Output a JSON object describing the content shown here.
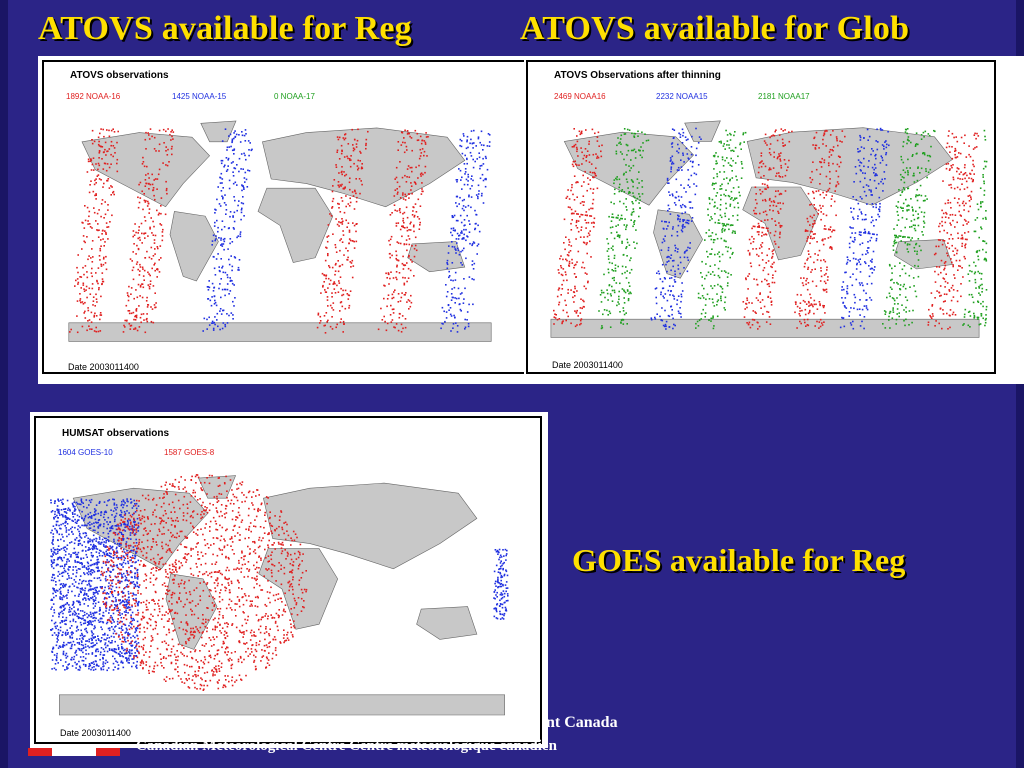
{
  "titles": {
    "atovs_reg": "ATOVS available for Reg",
    "atovs_glob": "ATOVS available for Glob",
    "goes_reg": "GOES available for Reg"
  },
  "panels": {
    "reg": {
      "title": "ATOVS observations",
      "legend": [
        {
          "label": "1892 NOAA-16",
          "color": "#e02020"
        },
        {
          "label": "1425 NOAA-15",
          "color": "#2030e0"
        },
        {
          "label": "0 NOAA-17",
          "color": "#20a020"
        }
      ],
      "date": "Date 2003011400"
    },
    "glob": {
      "title": "ATOVS Observations after thinning",
      "legend": [
        {
          "label": "2469 NOAA16",
          "color": "#e02020"
        },
        {
          "label": "2232 NOAA15",
          "color": "#2030e0"
        },
        {
          "label": "2181 NOAA17",
          "color": "#20a020"
        }
      ],
      "date": "Date 2003011400"
    },
    "goes": {
      "title": "HUMSAT observations",
      "legend": [
        {
          "label": "1604 GOES-10",
          "color": "#2030e0"
        },
        {
          "label": "1587 GOES-8",
          "color": "#e02020"
        }
      ],
      "date": "Date 2003011400"
    }
  },
  "footer": {
    "line1": "nt Canada",
    "line2": "Canadian Meteorological Centre    Centre météorologique canadien"
  },
  "colors": {
    "background": "#2b2487",
    "title": "#ffe000",
    "land": "#c8c8c8",
    "noaa16": "#e02020",
    "noaa15": "#2030e0",
    "noaa17": "#20a020"
  }
}
